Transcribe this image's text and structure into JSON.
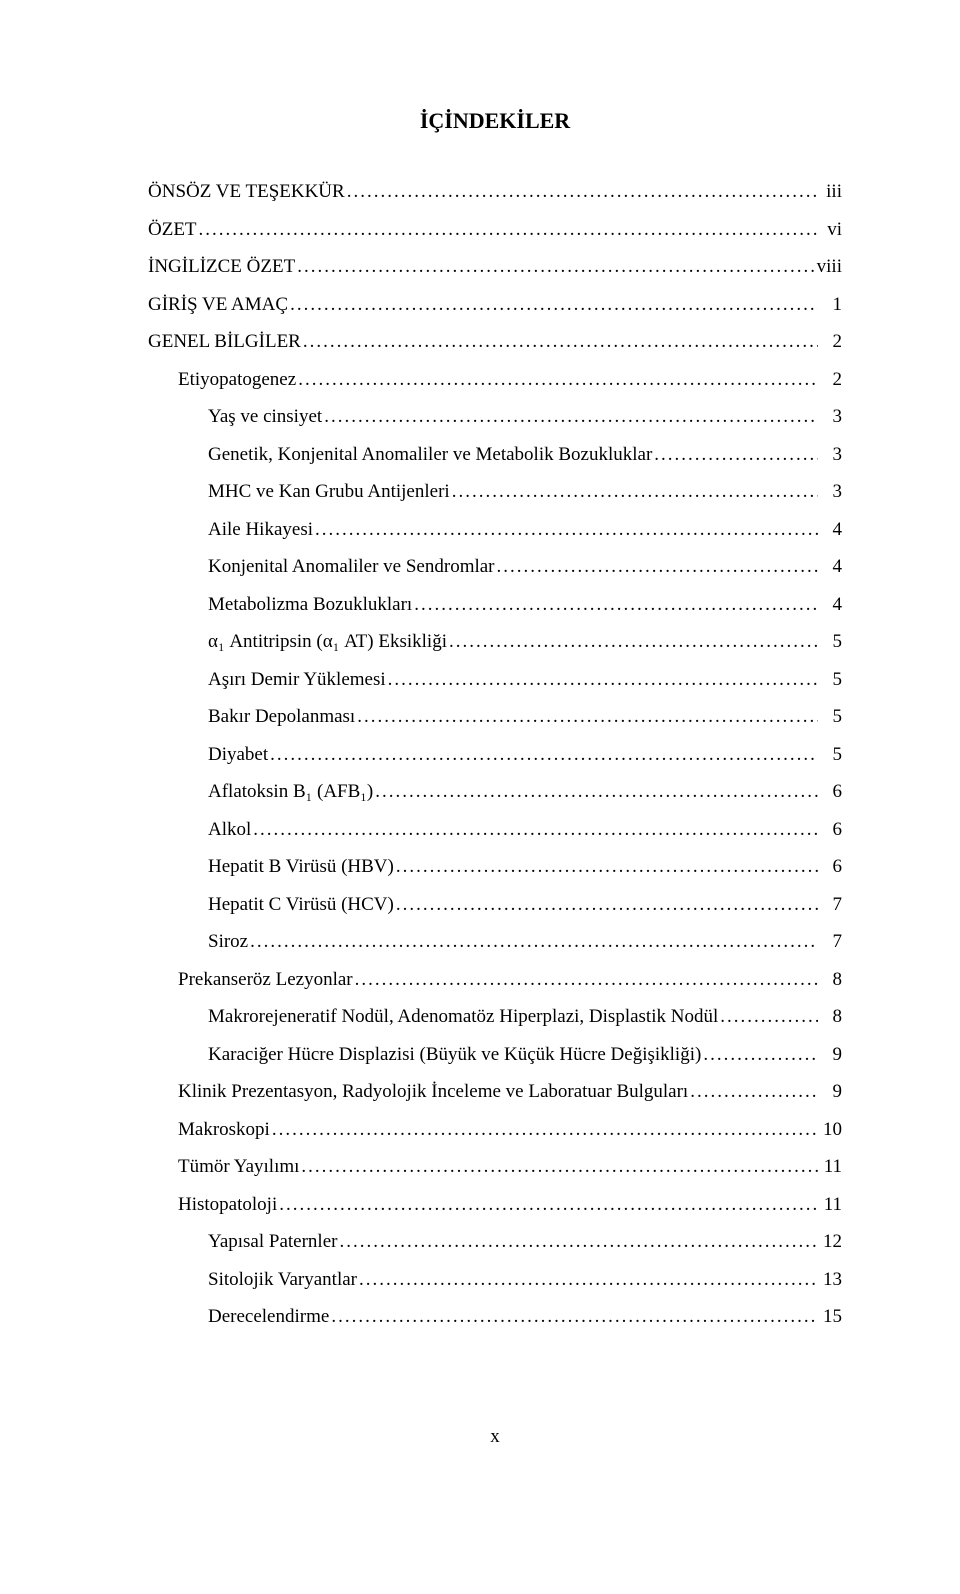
{
  "title": "İÇİNDEKİLER",
  "page_number_label": "x",
  "font": {
    "family": "Times New Roman",
    "title_size_pt": 16,
    "body_size_pt": 14,
    "color": "#000000",
    "background": "#ffffff"
  },
  "entries": [
    {
      "label": "ÖNSÖZ VE TEŞEKKÜR",
      "page": "iii",
      "indent": 0
    },
    {
      "label": "ÖZET",
      "page": "vi",
      "indent": 0
    },
    {
      "label": "İNGİLİZCE ÖZET",
      "page": "viii",
      "indent": 0
    },
    {
      "label": "GİRİŞ VE AMAÇ",
      "page": "1",
      "indent": 0
    },
    {
      "label": "GENEL BİLGİLER",
      "page": "2",
      "indent": 0
    },
    {
      "label": "Etiyopatogenez",
      "page": "2",
      "indent": 1
    },
    {
      "label": "Yaş ve cinsiyet",
      "page": "3",
      "indent": 2
    },
    {
      "label": "Genetik, Konjenital Anomaliler ve Metabolik Bozukluklar",
      "page": "3",
      "indent": 2
    },
    {
      "label": "MHC ve Kan Grubu Antijenleri",
      "page": "3",
      "indent": 2
    },
    {
      "label": "Aile Hikayesi",
      "page": "4",
      "indent": 2
    },
    {
      "label": "Konjenital Anomaliler ve Sendromlar",
      "page": "4",
      "indent": 2
    },
    {
      "label": "Metabolizma Bozuklukları",
      "page": "4",
      "indent": 2
    },
    {
      "label": "α₁ Antitripsin (α₁ AT) Eksikliği",
      "page": "5",
      "indent": 2
    },
    {
      "label": "Aşırı Demir Yüklemesi",
      "page": "5",
      "indent": 2
    },
    {
      "label": "Bakır Depolanması",
      "page": "5",
      "indent": 2
    },
    {
      "label": "Diyabet",
      "page": "5",
      "indent": 2
    },
    {
      "label": "Aflatoksin B₁ (AFB₁)",
      "page": "6",
      "indent": 2
    },
    {
      "label": "Alkol",
      "page": "6",
      "indent": 2
    },
    {
      "label": "Hepatit B Virüsü (HBV)",
      "page": "6",
      "indent": 2
    },
    {
      "label": "Hepatit C Virüsü (HCV)",
      "page": "7",
      "indent": 2
    },
    {
      "label": "Siroz",
      "page": "7",
      "indent": 2
    },
    {
      "label": "Prekanseröz Lezyonlar",
      "page": "8",
      "indent": 1
    },
    {
      "label": "Makrorejeneratif Nodül, Adenomatöz Hiperplazi, Displastik Nodül",
      "page": "8",
      "indent": 2
    },
    {
      "label": "Karaciğer Hücre Displazisi (Büyük ve Küçük Hücre Değişikliği)",
      "page": "9",
      "indent": 2
    },
    {
      "label": "Klinik Prezentasyon, Radyolojik İnceleme ve Laboratuar Bulguları",
      "page": "9",
      "indent": 1
    },
    {
      "label": "Makroskopi",
      "page": "10",
      "indent": 1
    },
    {
      "label": "Tümör Yayılımı",
      "page": "11",
      "indent": 1
    },
    {
      "label": "Histopatoloji",
      "page": "11",
      "indent": 1
    },
    {
      "label": "Yapısal Paternler",
      "page": "12",
      "indent": 2
    },
    {
      "label": "Sitolojik Varyantlar",
      "page": "13",
      "indent": 2
    },
    {
      "label": "Derecelendirme",
      "page": "15",
      "indent": 2
    }
  ]
}
